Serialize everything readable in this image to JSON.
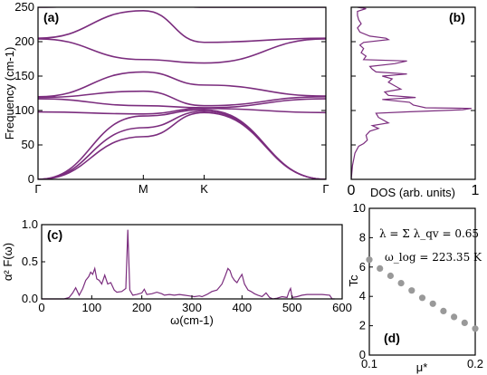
{
  "colors": {
    "curve": "#7b2d7e",
    "points": "#999999",
    "axis": "#000000"
  },
  "chart_data": [
    {
      "id": "a",
      "type": "line",
      "panel_label": "(a)",
      "ylabel": "Frequency (cm-1)",
      "ylim": [
        0,
        250
      ],
      "yticks": [
        "0",
        "50",
        "100",
        "150",
        "200",
        "250"
      ],
      "xticks": [
        "Γ",
        "M",
        "K",
        "Γ"
      ],
      "x_positions": [
        0,
        1,
        1.5779,
        2.7338
      ],
      "series": [
        {
          "values": [
            [
              0,
              0
            ],
            [
              1,
              62
            ],
            [
              1.5779,
              97
            ],
            [
              2.7338,
              0
            ]
          ]
        },
        {
          "values": [
            [
              0,
              0
            ],
            [
              1,
              75
            ],
            [
              1.5779,
              99
            ],
            [
              2.7338,
              0
            ]
          ]
        },
        {
          "values": [
            [
              0,
              0
            ],
            [
              1,
              92
            ],
            [
              1.5779,
              101
            ],
            [
              2.7338,
              0
            ]
          ]
        },
        {
          "values": [
            [
              0,
              98
            ],
            [
              1,
              95
            ],
            [
              1.5779,
              103
            ],
            [
              2.7338,
              97
            ]
          ]
        },
        {
          "values": [
            [
              0,
              117
            ],
            [
              1,
              107
            ],
            [
              1.5779,
              104
            ],
            [
              2.7338,
              117
            ]
          ]
        },
        {
          "values": [
            [
              0,
              119
            ],
            [
              1,
              128
            ],
            [
              1.5779,
              107
            ],
            [
              2.7338,
              120
            ]
          ]
        },
        {
          "values": [
            [
              0,
              120
            ],
            [
              1,
              156
            ],
            [
              1.5779,
              137
            ],
            [
              2.7338,
              121
            ]
          ]
        },
        {
          "values": [
            [
              0,
              204
            ],
            [
              1,
              174
            ],
            [
              1.5779,
              169
            ],
            [
              2.7338,
              204
            ]
          ]
        },
        {
          "values": [
            [
              0,
              205
            ],
            [
              1,
              245
            ],
            [
              1.5779,
              199
            ],
            [
              2.7338,
              205
            ]
          ]
        },
        {
          "values": [
            [
              0,
              250
            ],
            [
              1,
              258
            ],
            [
              1.5779,
              250
            ],
            [
              2.7338,
              250
            ]
          ]
        }
      ]
    },
    {
      "id": "b",
      "type": "line",
      "panel_label": "(b)",
      "xlabel": "DOS (arb. units)",
      "xticks": [
        "0",
        "1"
      ],
      "xlim": [
        0,
        1
      ],
      "ylim": [
        0,
        250
      ],
      "series": [
        {
          "values": [
            [
              0.0,
              0
            ],
            [
              0.01,
              20
            ],
            [
              0.03,
              38
            ],
            [
              0.06,
              48
            ],
            [
              0.1,
              52
            ],
            [
              0.13,
              57
            ],
            [
              0.12,
              64
            ],
            [
              0.15,
              70
            ],
            [
              0.22,
              74
            ],
            [
              0.17,
              78
            ],
            [
              0.3,
              82
            ],
            [
              0.22,
              90
            ],
            [
              0.2,
              96
            ],
            [
              0.45,
              98
            ],
            [
              0.9,
              101
            ],
            [
              0.97,
              103
            ],
            [
              0.6,
              104
            ],
            [
              0.5,
              108
            ],
            [
              0.47,
              112
            ],
            [
              0.25,
              116
            ],
            [
              0.52,
              119
            ],
            [
              0.3,
              122
            ],
            [
              0.27,
              127
            ],
            [
              0.4,
              131
            ],
            [
              0.35,
              136
            ],
            [
              0.3,
              141
            ],
            [
              0.33,
              146
            ],
            [
              0.25,
              150
            ],
            [
              0.45,
              153
            ],
            [
              0.2,
              156
            ],
            [
              0.17,
              160
            ],
            [
              0.15,
              164
            ],
            [
              0.35,
              168
            ],
            [
              0.45,
              172
            ],
            [
              0.1,
              174
            ],
            [
              0.12,
              179
            ],
            [
              0.08,
              184
            ],
            [
              0.1,
              190
            ],
            [
              0.07,
              195
            ],
            [
              0.1,
              199
            ],
            [
              0.3,
              203
            ],
            [
              0.28,
              205
            ],
            [
              0.15,
              208
            ],
            [
              0.07,
              214
            ],
            [
              0.05,
              220
            ],
            [
              0.08,
              226
            ],
            [
              0.06,
              232
            ],
            [
              0.05,
              238
            ],
            [
              0.05,
              244
            ],
            [
              0.12,
              248
            ],
            [
              0.05,
              250
            ]
          ]
        }
      ]
    },
    {
      "id": "c",
      "type": "line",
      "panel_label": "(c)",
      "xlabel": "ω(cm-1)",
      "ylabel": "α² F(ω)",
      "xlim": [
        0,
        600
      ],
      "ylim": [
        0,
        1.0
      ],
      "xticks": [
        "0",
        "100",
        "200",
        "300",
        "400",
        "500",
        "600"
      ],
      "yticks": [
        "0.0",
        "0.5",
        "1.0"
      ],
      "series": [
        {
          "values": [
            [
              0,
              0
            ],
            [
              45,
              0
            ],
            [
              55,
              0.02
            ],
            [
              62,
              0.08
            ],
            [
              68,
              0.15
            ],
            [
              75,
              0.05
            ],
            [
              82,
              0.14
            ],
            [
              88,
              0.25
            ],
            [
              94,
              0.3
            ],
            [
              98,
              0.36
            ],
            [
              102,
              0.33
            ],
            [
              106,
              0.41
            ],
            [
              110,
              0.27
            ],
            [
              115,
              0.25
            ],
            [
              120,
              0.2
            ],
            [
              126,
              0.32
            ],
            [
              132,
              0.2
            ],
            [
              138,
              0.22
            ],
            [
              145,
              0.12
            ],
            [
              150,
              0.09
            ],
            [
              160,
              0.1
            ],
            [
              168,
              0.14
            ],
            [
              172,
              0.93
            ],
            [
              176,
              0.12
            ],
            [
              182,
              0.05
            ],
            [
              190,
              0.06
            ],
            [
              200,
              0.08
            ],
            [
              205,
              0.13
            ],
            [
              210,
              0.06
            ],
            [
              220,
              0.07
            ],
            [
              230,
              0.09
            ],
            [
              240,
              0.07
            ],
            [
              245,
              0.05
            ],
            [
              255,
              0.06
            ],
            [
              265,
              0.05
            ],
            [
              275,
              0.06
            ],
            [
              285,
              0.05
            ],
            [
              295,
              0.04
            ],
            [
              305,
              0.03
            ],
            [
              315,
              0.04
            ],
            [
              320,
              0.03
            ],
            [
              330,
              0.06
            ],
            [
              340,
              0.1
            ],
            [
              350,
              0.12
            ],
            [
              360,
              0.2
            ],
            [
              366,
              0.3
            ],
            [
              372,
              0.41
            ],
            [
              376,
              0.38
            ],
            [
              380,
              0.3
            ],
            [
              385,
              0.25
            ],
            [
              390,
              0.22
            ],
            [
              395,
              0.28
            ],
            [
              400,
              0.33
            ],
            [
              405,
              0.2
            ],
            [
              412,
              0.12
            ],
            [
              418,
              0.1
            ],
            [
              425,
              0.07
            ],
            [
              432,
              0.05
            ],
            [
              440,
              0.03
            ],
            [
              448,
              0.08
            ],
            [
              455,
              0.02
            ],
            [
              462,
              0
            ],
            [
              470,
              0.01
            ],
            [
              480,
              0.03
            ],
            [
              490,
              0.02
            ],
            [
              494,
              0.1
            ],
            [
              497,
              0.14
            ],
            [
              500,
              0.02
            ],
            [
              510,
              0.03
            ],
            [
              520,
              0.05
            ],
            [
              530,
              0.06
            ],
            [
              545,
              0.06
            ],
            [
              560,
              0.06
            ],
            [
              575,
              0.05
            ],
            [
              580,
              0
            ],
            [
              585,
              0
            ]
          ]
        }
      ]
    },
    {
      "id": "d",
      "type": "scatter",
      "panel_label": "(d)",
      "xlabel": "μ*",
      "ylabel": "Tc",
      "xlim": [
        0.1,
        0.2
      ],
      "ylim": [
        0,
        10
      ],
      "xticks": [
        "0.1",
        "0.2"
      ],
      "yticks": [
        "0",
        "2",
        "4",
        "6",
        "8",
        "10"
      ],
      "annotations": [
        "λ = Σ λ_qv = 0.65",
        "ω_log = 223.35 K"
      ],
      "series": [
        {
          "x": [
            0.1,
            0.11,
            0.12,
            0.13,
            0.14,
            0.15,
            0.16,
            0.17,
            0.18,
            0.19,
            0.2
          ],
          "values": [
            6.5,
            5.9,
            5.4,
            4.9,
            4.4,
            3.9,
            3.5,
            3.0,
            2.6,
            2.2,
            1.8
          ]
        }
      ]
    }
  ]
}
